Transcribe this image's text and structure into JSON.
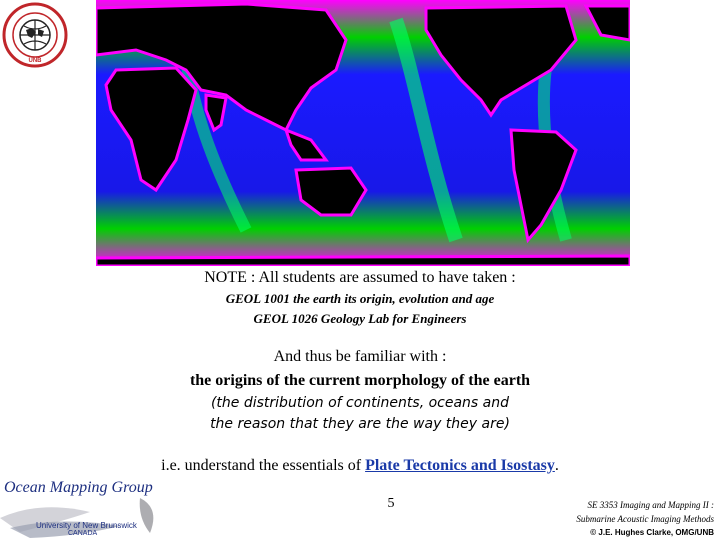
{
  "logo_text": "GEODESY AND GEOMATICS ENGINEERING UNB",
  "note_heading": "NOTE : All students are assumed to have taken :",
  "courses": [
    "GEOL 1001 the earth its origin, evolution and age",
    "GEOL 1026 Geology Lab for Engineers"
  ],
  "familiar_line": "And thus be familiar with :",
  "origins_line": "the origins of the current morphology of the earth",
  "distribution_lines": [
    "(the distribution of continents, oceans and",
    "the reason that they are the way they are)"
  ],
  "ie_line": {
    "prefix": "i.e. understand the essentials of ",
    "link": "Plate Tectonics and Isostasy",
    "suffix": "."
  },
  "footer": {
    "group_name": "Ocean Mapping Group",
    "university": "University of New Brunswick",
    "country": "CANADA",
    "page_number": "5",
    "credit_lines": [
      "SE 3353 Imaging and Mapping II :",
      "Submarine Acoustic Imaging Methods",
      "© J.E. Hughes Clarke, OMG/UNB"
    ]
  },
  "colors": {
    "link": "#1a3aa8",
    "omg_blue": "#1d2f80",
    "map_land": "#000000",
    "map_deep": "#1a1aff",
    "map_shelf": "#00e000",
    "map_margin": "#ff00ff"
  }
}
